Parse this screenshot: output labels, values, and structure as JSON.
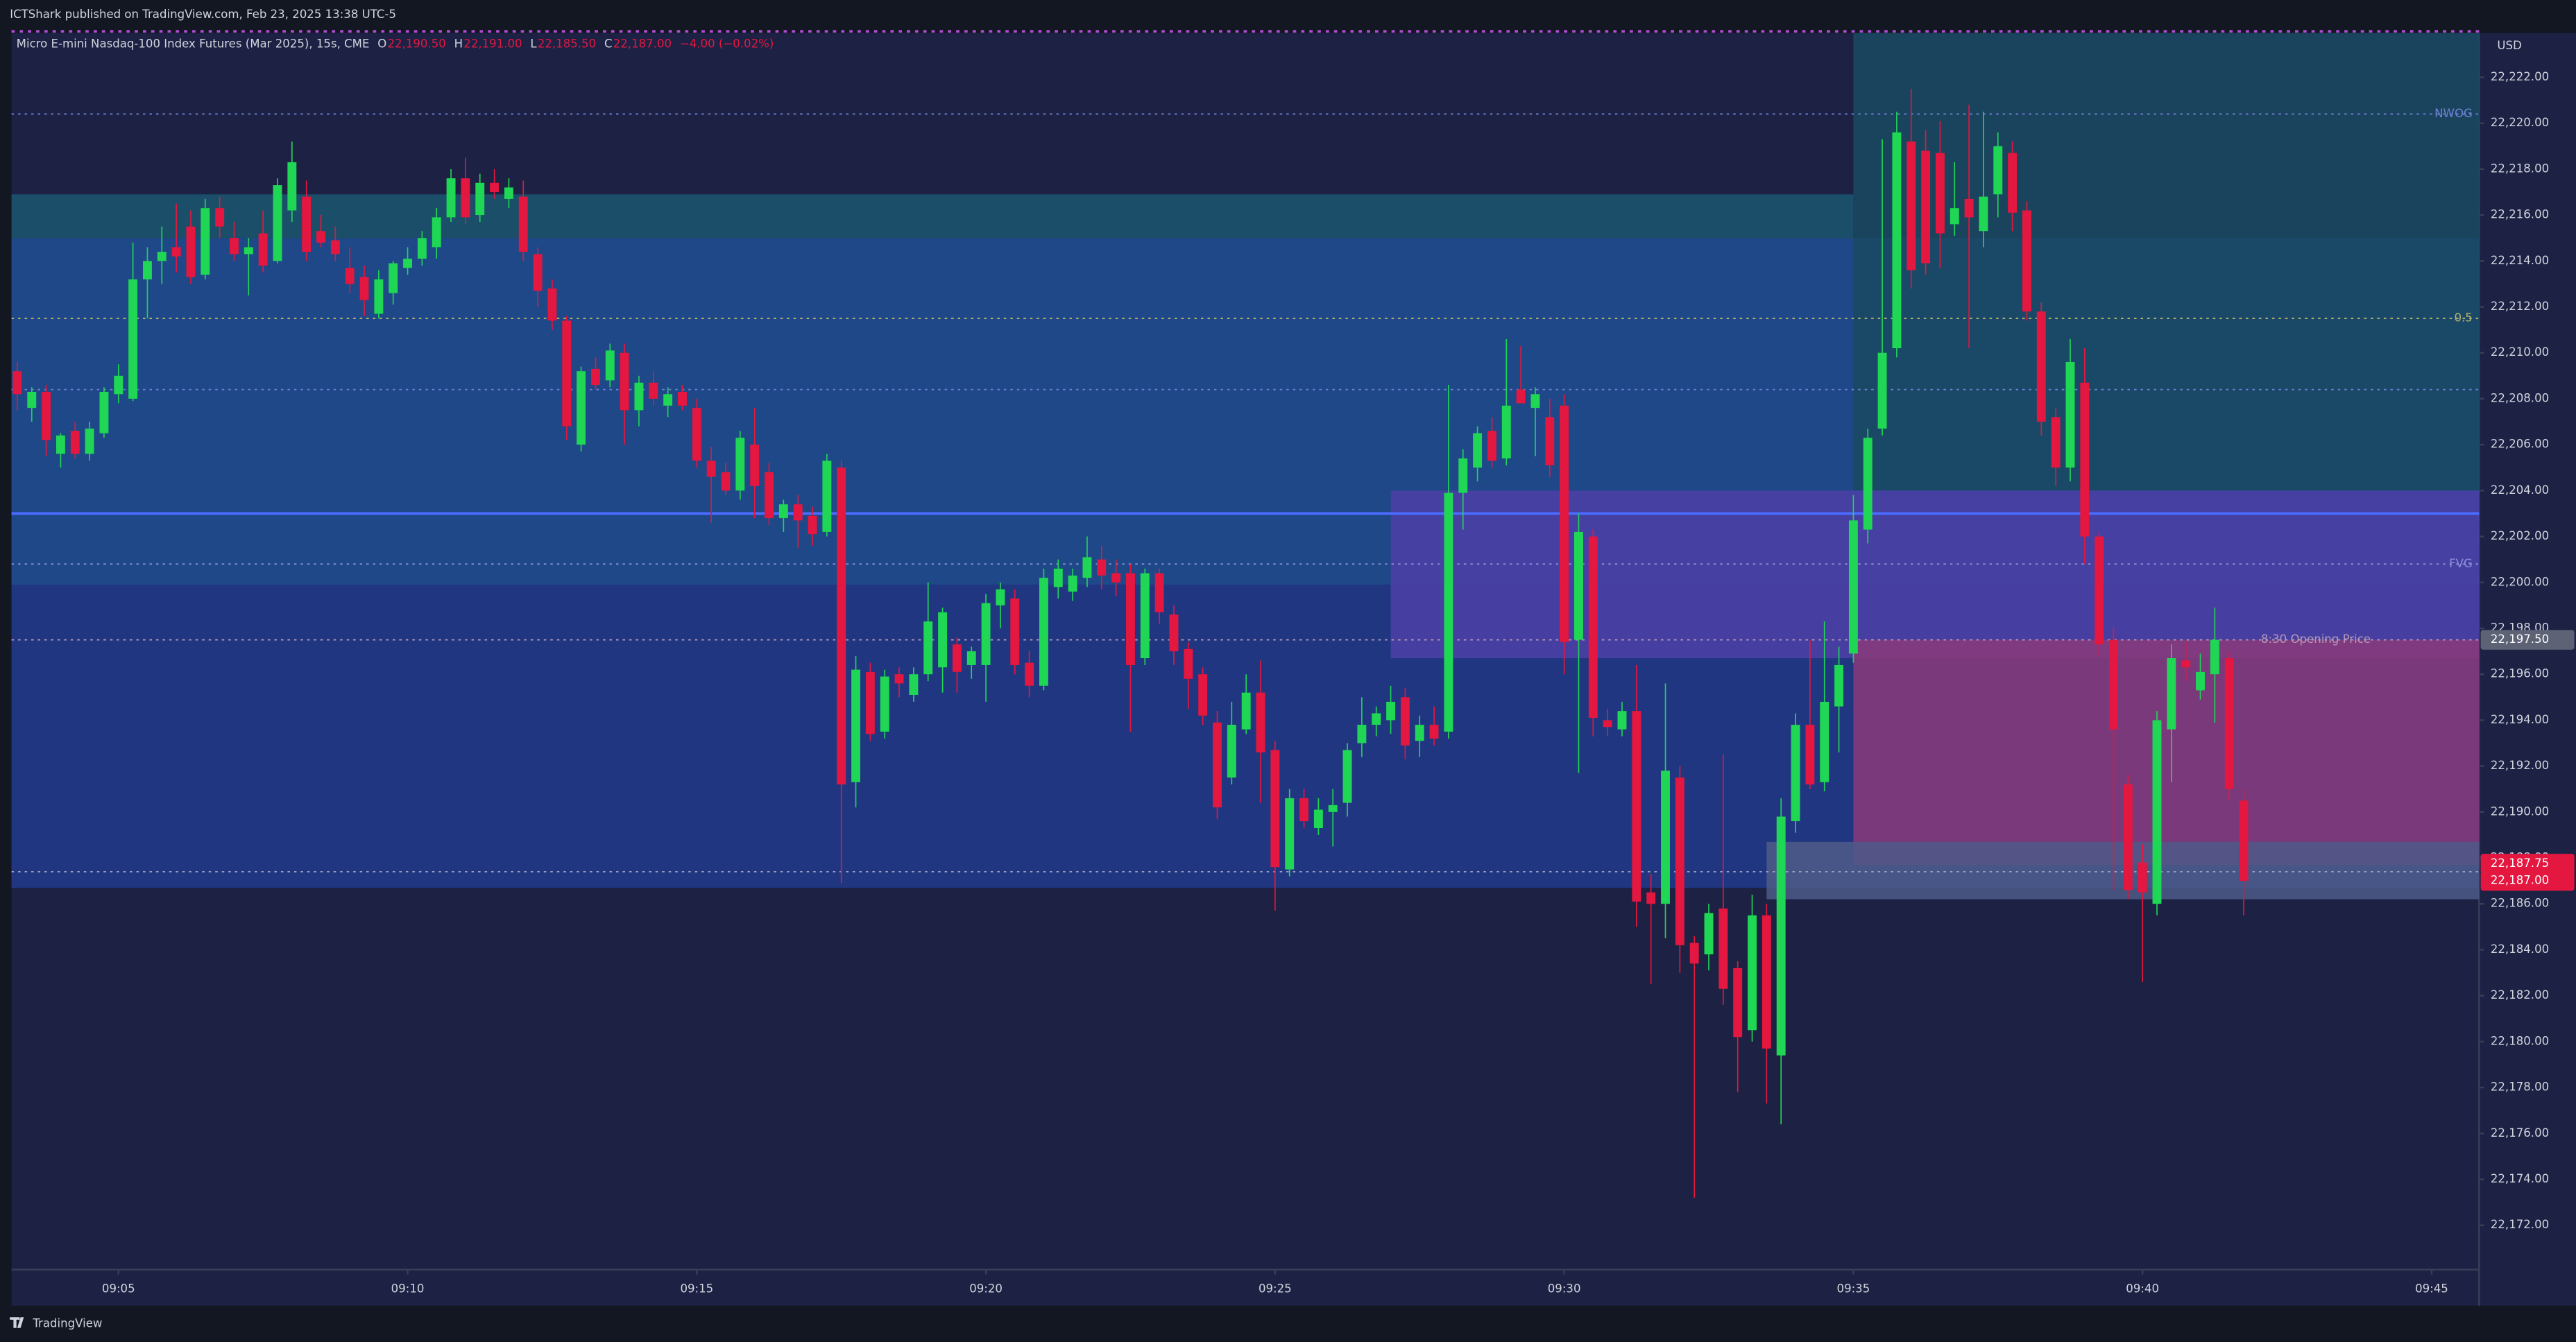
{
  "header": {
    "title": "ICTShark published on TradingView.com, Feb 23, 2025 13:38 UTC-5"
  },
  "footer": {
    "brand": "TradingView"
  },
  "chart_data": {
    "type": "candlestick",
    "symbol": "Micro E-mini Nasdaq-100 Index Futures (Mar 2025), 15s, CME",
    "legend": [
      {
        "key": "O",
        "value": "22,190.50"
      },
      {
        "key": "H",
        "value": "22,191.00"
      },
      {
        "key": "L",
        "value": "22,185.50"
      },
      {
        "key": "C",
        "value": "22,187.00"
      }
    ],
    "change": "−4.00 (−0.02%)",
    "currency": "USD",
    "up_color": "#1fd655",
    "down_color": "#e3173f",
    "x": [
      543.25,
      543.5,
      543.75,
      544,
      544.25,
      544.5,
      544.75,
      545,
      545.25,
      545.5,
      545.75,
      546,
      546.25,
      546.5,
      546.75,
      547,
      547.25,
      547.5,
      547.75,
      548,
      548.25,
      548.5,
      548.75,
      549,
      549.25,
      549.5,
      549.75,
      550,
      550.25,
      550.5,
      550.75,
      551,
      551.25,
      551.5,
      551.75,
      552,
      552.25,
      552.5,
      552.75,
      553,
      553.25,
      553.5,
      553.75,
      554,
      554.25,
      554.5,
      554.75,
      555,
      555.25,
      555.5,
      555.75,
      556,
      556.25,
      556.5,
      556.75,
      557,
      557.25,
      557.5,
      557.75,
      558,
      558.25,
      558.5,
      558.75,
      559,
      559.25,
      559.5,
      559.75,
      560,
      560.25,
      560.5,
      560.75,
      561,
      561.25,
      561.5,
      561.75,
      562,
      562.25,
      562.5,
      562.75,
      563,
      563.25,
      563.5,
      563.75,
      564,
      564.25,
      564.5,
      564.75,
      565,
      565.25,
      565.5,
      565.75,
      566,
      566.25,
      566.5,
      566.75,
      567,
      567.25,
      567.5,
      567.75,
      568,
      568.25,
      568.5,
      568.75,
      569,
      569.25,
      569.5,
      569.75,
      570,
      570.25,
      570.5,
      570.75,
      571,
      571.25,
      571.5,
      571.75,
      572,
      572.25,
      572.5,
      572.75,
      573,
      573.25,
      573.5,
      573.75,
      574,
      574.25,
      574.5,
      574.75,
      575,
      575.25,
      575.5,
      575.75,
      576,
      576.25,
      576.5,
      576.75,
      577,
      577.25,
      577.5,
      577.75,
      578,
      578.25,
      578.5,
      578.75,
      579,
      579.25,
      579.5,
      579.75,
      580,
      580.25,
      580.5,
      580.75,
      581,
      581.25,
      581.5,
      581.75
    ],
    "open": [
      22209.2,
      22207.6,
      22208.3,
      22205.6,
      22206.6,
      22205.6,
      22206.5,
      22208.2,
      22208,
      22213.2,
      22214,
      22214.6,
      22215.5,
      22213.4,
      22216.3,
      22215,
      22214.3,
      22215.2,
      22214,
      22216.2,
      22216.8,
      22215.3,
      22214.9,
      22213.7,
      22213.3,
      22211.7,
      22212.6,
      22213.7,
      22214.1,
      22214.6,
      22215.9,
      22217.6,
      22216,
      22217.4,
      22216.7,
      22216.8,
      22214.3,
      22212.8,
      22211.4,
      22206,
      22209.3,
      22208.8,
      22210,
      22207.5,
      22208.7,
      22207.7,
      22208.3,
      22207.6,
      22205.3,
      22204.8,
      22204,
      22206,
      22204.8,
      22202.8,
      22203.4,
      22202.9,
      22202.2,
      22205,
      22191.3,
      22196.1,
      22193.5,
      22196,
      22195.1,
      22196,
      22196.3,
      22197.3,
      22196.4,
      22196.4,
      22199,
      22199.3,
      22196.5,
      22195.5,
      22199.8,
      22199.6,
      22200.2,
      22201,
      22200.4,
      22200.4,
      22196.7,
      22200.4,
      22198.6,
      22197.1,
      22196,
      22193.9,
      22191.5,
      22193.6,
      22195.2,
      22192.7,
      22187.5,
      22190.6,
      22189.3,
      22190,
      22190.4,
      22193,
      22193.8,
      22194,
      22195,
      22193.1,
      22193.8,
      22193.5,
      22203.9,
      22205,
      22206.6,
      22205.4,
      22208.4,
      22207.6,
      22207.2,
      22207.7,
      22197.5,
      22202,
      22194,
      22193.6,
      22194.4,
      22186.5,
      22186,
      22191.5,
      22184.3,
      22183.8,
      22185.8,
      22183.2,
      22180.5,
      22185.5,
      22179.4,
      22189.6,
      22193.8,
      22191.3,
      22194.6,
      22196.9,
      22202.3,
      22206.7,
      22210.2,
      22219.2,
      22218.8,
      22218.7,
      22215.6,
      22216.7,
      22215.3,
      22216.9,
      22218.7,
      22216.2,
      22211.8,
      22207.2,
      22205,
      22208.7,
      22202,
      22197.5,
      22191.2,
      22187.8,
      22186,
      22193.6,
      22196.6,
      22195.3,
      22196,
      22196.7,
      22190.5
    ],
    "high": [
      22209.6,
      22208.5,
      22208.6,
      22206.5,
      22207,
      22207,
      22208.5,
      22209.5,
      22214.8,
      22214.6,
      22215.5,
      22216.5,
      22216.2,
      22216.7,
      22216.8,
      22215.7,
      22215,
      22216.2,
      22217.6,
      22219.2,
      22217.5,
      22216,
      22215.5,
      22214.6,
      22213.8,
      22213.6,
      22214,
      22214.6,
      22215.3,
      22216.3,
      22218,
      22218.5,
      22217.8,
      22218,
      22217.6,
      22217.5,
      22214.6,
      22213.2,
      22211.6,
      22209.4,
      22209.8,
      22210.4,
      22210.4,
      22209,
      22209.2,
      22208.5,
      22208.6,
      22208,
      22205.9,
      22205.2,
      22206.6,
      22207.6,
      22205.2,
      22203.6,
      22203.8,
      22203.3,
      22205.6,
      22205.3,
      22196.8,
      22196.5,
      22196.2,
      22196.3,
      22196.3,
      22200,
      22198.9,
      22197.6,
      22197.2,
      22199.5,
      22200,
      22199.7,
      22197,
      22200.6,
      22201,
      22200.6,
      22202,
      22201.6,
      22201,
      22200.8,
      22200.6,
      22200.6,
      22199,
      22197.4,
      22196.3,
      22194.4,
      22194.8,
      22196,
      22196.6,
      22193.1,
      22191,
      22191,
      22190.6,
      22191,
      22193,
      22195,
      22194.6,
      22195.5,
      22195.4,
      22194.2,
      22194.6,
      22208.6,
      22205.8,
      22206.8,
      22207.2,
      22210.6,
      22210.3,
      22208.5,
      22208,
      22208.2,
      22203,
      22202.3,
      22194.5,
      22194.8,
      22196.4,
      22187.3,
      22195.6,
      22192,
      22184.6,
      22186,
      22192.5,
      22183.5,
      22186.4,
      22186,
      22190.6,
      22194.3,
      22197.5,
      22198.3,
      22197.2,
      22203.8,
      22206.7,
      22219.3,
      22220.5,
      22221.5,
      22219.7,
      22220.1,
      22218.3,
      22220.8,
      22220.5,
      22219.6,
      22219.2,
      22216.6,
      22212.2,
      22207.6,
      22210.6,
      22210.2,
      22202.2,
      22198,
      22191.6,
      22188.6,
      22194.4,
      22197.3,
      22197.4,
      22196.9,
      22198.9,
      22197,
      22191
    ],
    "low": [
      22207.5,
      22207,
      22205.5,
      22205,
      22205.4,
      22205.3,
      22206.3,
      22207.8,
      22207.9,
      22211.5,
      22213,
      22213.5,
      22213,
      22213.2,
      22215,
      22214,
      22212.5,
      22213.5,
      22213.9,
      22215.7,
      22214,
      22214.6,
      22214,
      22212.6,
      22211.6,
      22211.5,
      22212.1,
      22213.4,
      22213.8,
      22214.1,
      22215.7,
      22215.6,
      22215.7,
      22216.7,
      22216.3,
      22214,
      22212,
      22211,
      22206.2,
      22205.7,
      22208.4,
      22208.5,
      22206,
      22206.8,
      22207.7,
      22207.2,
      22207.5,
      22205,
      22202.6,
      22203.8,
      22203.6,
      22202.8,
      22202.5,
      22202.2,
      22201.5,
      22201.6,
      22202,
      22186.9,
      22190.2,
      22193.1,
      22193.2,
      22195,
      22194.8,
      22195.7,
      22195.2,
      22195.2,
      22195.8,
      22194.8,
      22198,
      22196,
      22195,
      22195.3,
      22199.3,
      22199.2,
      22199.8,
      22199.7,
      22199.4,
      22193.5,
      22196.4,
      22198.2,
      22196.4,
      22194.5,
      22193.8,
      22189.7,
      22191.2,
      22193.4,
      22190.4,
      22185.7,
      22187.2,
      22189.3,
      22189,
      22188.5,
      22189.8,
      22192.4,
      22193.3,
      22193.4,
      22192.3,
      22192.4,
      22192.9,
      22193.2,
      22202.3,
      22204.4,
      22205,
      22205.1,
      22207.8,
      22205.5,
      22204.6,
      22196,
      22191.7,
      22193.3,
      22193.3,
      22193.3,
      22185,
      22182.5,
      22184.5,
      22183,
      22173.2,
      22183.1,
      22181.6,
      22177.8,
      22180,
      22177.3,
      22176.4,
      22189.1,
      22191,
      22190.9,
      22192.6,
      22196.5,
      22201.7,
      22206.4,
      22209.8,
      22212.8,
      22213.4,
      22213.7,
      22215.1,
      22210.2,
      22214.6,
      22215.9,
      22215.3,
      22211.4,
      22206.4,
      22204.2,
      22204.4,
      22200.8,
      22196.8,
      22186.6,
      22186.2,
      22182.6,
      22185.5,
      22191.3,
      22195.7,
      22194.9,
      22193.9,
      22190.5,
      22185.5
    ],
    "close": [
      22208.2,
      22208.3,
      22206.2,
      22206.4,
      22205.6,
      22206.7,
      22208.3,
      22209,
      22213.2,
      22214,
      22214.4,
      22214.2,
      22213.3,
      22216.3,
      22215.5,
      22214.3,
      22214.6,
      22213.8,
      22217.3,
      22218.3,
      22214.4,
      22214.8,
      22214.3,
      22213,
      22212.3,
      22213.2,
      22213.9,
      22214.1,
      22215,
      22215.9,
      22217.6,
      22215.9,
      22217.4,
      22217,
      22217.2,
      22214.4,
      22212.7,
      22211.4,
      22206.8,
      22209.2,
      22208.6,
      22210.1,
      22207.5,
      22208.7,
      22208,
      22208.2,
      22207.7,
      22205.3,
      22204.6,
      22204,
      22206.3,
      22204.2,
      22202.8,
      22203.4,
      22202.7,
      22202.1,
      22205.3,
      22191.2,
      22196.2,
      22193.4,
      22195.9,
      22195.6,
      22196,
      22198.3,
      22198.7,
      22196.1,
      22197,
      22199.1,
      22199.7,
      22196.4,
      22195.5,
      22200.2,
      22200.6,
      22200.3,
      22201.1,
      22200.3,
      22200,
      22196.4,
      22200.4,
      22198.7,
      22197,
      22195.8,
      22194.2,
      22190.2,
      22193.8,
      22195.2,
      22192.6,
      22187.6,
      22190.6,
      22189.6,
      22190.1,
      22190.3,
      22192.7,
      22193.8,
      22194.3,
      22194.8,
      22192.9,
      22193.8,
      22193.2,
      22203.9,
      22205.4,
      22206.5,
      22205.3,
      22207.7,
      22207.8,
      22208.2,
      22205.1,
      22197.4,
      22202.2,
      22194.1,
      22193.7,
      22194.4,
      22186.1,
      22186,
      22191.8,
      22184.2,
      22183.4,
      22185.6,
      22182.3,
      22180.2,
      22185.5,
      22179.7,
      22189.8,
      22193.8,
      22191.2,
      22194.8,
      22196.4,
      22202.7,
      22206.3,
      22210,
      22219.6,
      22213.6,
      22213.9,
      22215.2,
      22216.3,
      22215.9,
      22216.8,
      22219,
      22216.1,
      22211.8,
      22207,
      22205,
      22209.6,
      22202,
      22197.3,
      22193.6,
      22186.6,
      22186.5,
      22194,
      22196.7,
      22196.3,
      22196.1,
      22197.5,
      22191,
      22187
    ],
    "xlim": [
      543.15,
      585.82
    ],
    "ylim": [
      22170.07,
      22223.93
    ],
    "xticks": [
      {
        "value": 545,
        "label": "09:05"
      },
      {
        "value": 550,
        "label": "09:10"
      },
      {
        "value": 555,
        "label": "09:15"
      },
      {
        "value": 560,
        "label": "09:20"
      },
      {
        "value": 565,
        "label": "09:25"
      },
      {
        "value": 570,
        "label": "09:30"
      },
      {
        "value": 575,
        "label": "09:35"
      },
      {
        "value": 580,
        "label": "09:40"
      },
      {
        "value": 585,
        "label": "09:45"
      }
    ],
    "yticks": [
      {
        "value": 22172,
        "label": "22,172.00"
      },
      {
        "value": 22174,
        "label": "22,174.00"
      },
      {
        "value": 22176,
        "label": "22,176.00"
      },
      {
        "value": 22178,
        "label": "22,178.00"
      },
      {
        "value": 22180,
        "label": "22,180.00"
      },
      {
        "value": 22182,
        "label": "22,182.00"
      },
      {
        "value": 22184,
        "label": "22,184.00"
      },
      {
        "value": 22186,
        "label": "22,186.00"
      },
      {
        "value": 22188,
        "label": "22,188.00"
      },
      {
        "value": 22190,
        "label": "22,190.00"
      },
      {
        "value": 22192,
        "label": "22,192.00"
      },
      {
        "value": 22194,
        "label": "22,194.00"
      },
      {
        "value": 22196,
        "label": "22,196.00"
      },
      {
        "value": 22198,
        "label": "22,198.00"
      },
      {
        "value": 22200,
        "label": "22,200.00"
      },
      {
        "value": 22202,
        "label": "22,202.00"
      },
      {
        "value": 22204,
        "label": "22,204.00"
      },
      {
        "value": 22206,
        "label": "22,206.00"
      },
      {
        "value": 22208,
        "label": "22,208.00"
      },
      {
        "value": 22210,
        "label": "22,210.00"
      },
      {
        "value": 22212,
        "label": "22,212.00"
      },
      {
        "value": 22214,
        "label": "22,214.00"
      },
      {
        "value": 22216,
        "label": "22,216.00"
      },
      {
        "value": 22218,
        "label": "22,218.00"
      },
      {
        "value": 22220,
        "label": "22,220.00"
      },
      {
        "value": 22222,
        "label": "22,222.00"
      }
    ],
    "zones": [
      {
        "x": [
          543.15,
          585.82
        ],
        "y": [
          22215.0,
          22199.9
        ],
        "color": "#1e4f93"
      },
      {
        "x": [
          543.15,
          585.82
        ],
        "y": [
          22199.9,
          22186.7
        ],
        "color": "#22398c"
      },
      {
        "x": [
          543.15,
          575
        ],
        "y": [
          22216.9,
          22215.0
        ],
        "color": "#1b5670"
      },
      {
        "x": [
          575,
          585.82
        ],
        "y": [
          22223.93,
          22204.0
        ],
        "color": "#1a4a62"
      },
      {
        "x": [
          567,
          585.82
        ],
        "y": [
          22204.0,
          22196.7
        ],
        "color": "#4c3fa6"
      },
      {
        "x": [
          575,
          585.82
        ],
        "y": [
          22197.5,
          22187.7
        ],
        "color": "#8a3a7a"
      },
      {
        "x": [
          573.5,
          585.82
        ],
        "y": [
          22188.7,
          22186.2
        ],
        "color": "#4e5a88"
      }
    ],
    "levels": [
      {
        "value": 22220.4,
        "label": "NWOG",
        "color": "#6f7fd6",
        "style": "dotted"
      },
      {
        "value": 22211.5,
        "label": "0.5",
        "color": "#b8b070",
        "style": "dotted"
      },
      {
        "value": 22208.4,
        "color": "#6f7fd6",
        "style": "dotted"
      },
      {
        "value": 22203.0,
        "color": "#4a6cff",
        "style": "solid"
      },
      {
        "value": 22200.8,
        "label": "FVG",
        "color": "#8a8fd8",
        "style": "dotted"
      },
      {
        "value": 22197.5,
        "label": "8:30 Opening Price",
        "color": "#b59ab8",
        "style": "dotted"
      },
      {
        "value": 22187.4,
        "color": "#9aa0c0",
        "style": "dotted"
      }
    ],
    "price_labels": [
      {
        "value": 22197.5,
        "label": "22,197.50",
        "color": "#5d6275"
      },
      {
        "value": 22187.75,
        "label": "22,187.75",
        "color": "#e3173f"
      },
      {
        "value": 22187,
        "label": "22,187.00",
        "color": "#e3173f"
      }
    ]
  }
}
